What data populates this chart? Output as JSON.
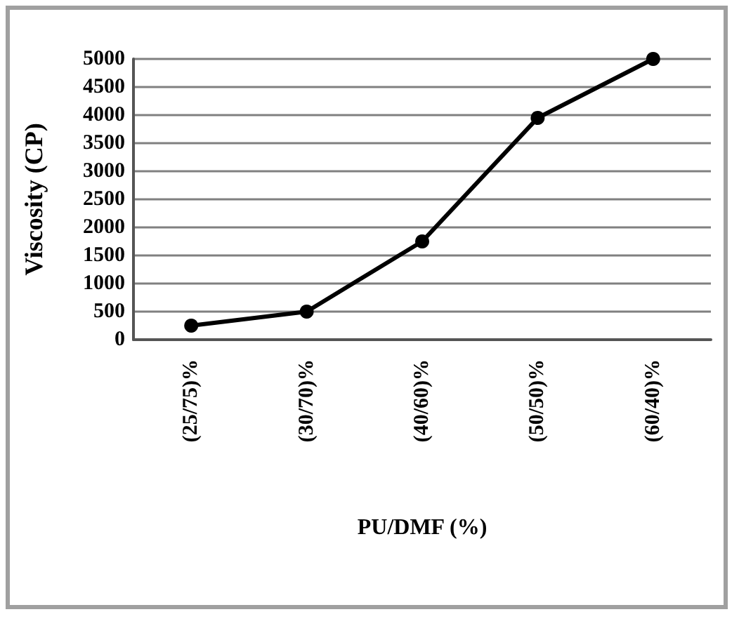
{
  "chart_data": {
    "type": "line",
    "xlabel": "PU/DMF (%)",
    "ylabel": "Viscosity (CP)",
    "categories": [
      "(25/75)%",
      "(30/70)%",
      "(40/60)%",
      "(50/50)%",
      "(60/40)%"
    ],
    "series": [
      {
        "color": "#000000",
        "values": [
          250,
          500,
          1750,
          3950,
          5000
        ]
      }
    ],
    "ylim": [
      0,
      5000
    ],
    "yticks": [
      0,
      500,
      1000,
      1500,
      2000,
      2500,
      3000,
      3500,
      4000,
      4500,
      5000
    ],
    "grid": "y",
    "marker": "circle",
    "line_style": "solid"
  }
}
